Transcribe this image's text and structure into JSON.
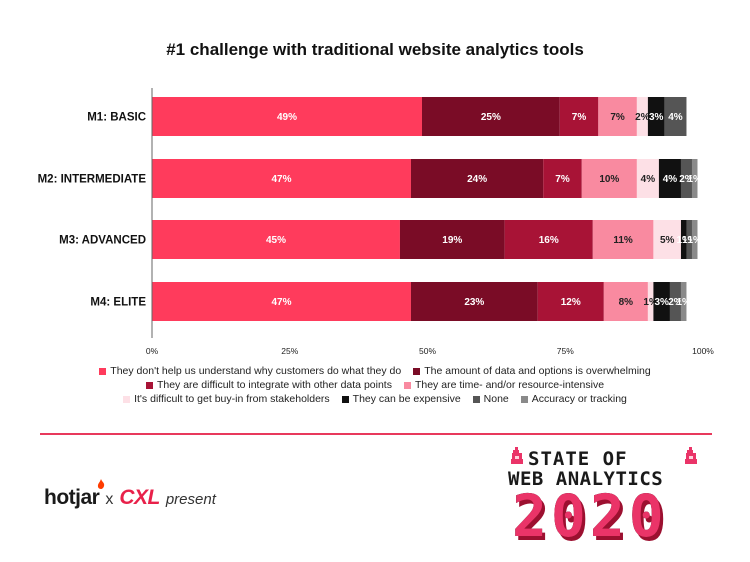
{
  "chart_data": {
    "type": "bar",
    "orientation": "horizontal",
    "stacked": true,
    "title": "#1 challenge with traditional website analytics tools",
    "categories": [
      "M1: BASIC",
      "M2: INTERMEDIATE",
      "M3: ADVANCED",
      "M4: ELITE"
    ],
    "xlim": [
      0,
      100
    ],
    "x_ticks": [
      "0%",
      "25%",
      "50%",
      "75%",
      "100%"
    ],
    "legend_position": "bottom",
    "grid": false,
    "series": [
      {
        "name": "They don't help us understand why customers do what they do",
        "color": "#ff3b5c",
        "label_color": "#ffffff",
        "values": [
          49,
          47,
          45,
          47
        ],
        "labels": [
          "49%",
          "47%",
          "45%",
          "47%"
        ]
      },
      {
        "name": "The amount of data and options is overwhelming",
        "color": "#7a0c26",
        "label_color": "#ffffff",
        "values": [
          25,
          24,
          19,
          23
        ],
        "labels": [
          "25%",
          "24%",
          "19%",
          "23%"
        ]
      },
      {
        "name": "They are difficult to integrate with other data points",
        "color": "#a81336",
        "label_color": "#ffffff",
        "values": [
          7,
          7,
          16,
          12
        ],
        "labels": [
          "7%",
          "7%",
          "16%",
          "12%"
        ]
      },
      {
        "name": "They are time- and/or resource-intensive",
        "color": "#f98aa0",
        "label_color": "#222222",
        "values": [
          7,
          10,
          11,
          8
        ],
        "labels": [
          "7%",
          "10%",
          "11%",
          "8%"
        ]
      },
      {
        "name": "It's difficult to get buy-in from stakeholders",
        "color": "#fde0e6",
        "label_color": "#222222",
        "values": [
          2,
          4,
          5,
          1
        ],
        "labels": [
          "2%",
          "4%",
          "5%",
          "1%"
        ]
      },
      {
        "name": "They can be expensive",
        "color": "#111111",
        "label_color": "#ffffff",
        "values": [
          3,
          4,
          1,
          3
        ],
        "labels": [
          "3%",
          "4%",
          "1%",
          "3%"
        ]
      },
      {
        "name": "None",
        "color": "#555555",
        "label_color": "#ffffff",
        "values": [
          4,
          2,
          1,
          2
        ],
        "labels": [
          "4%",
          "2%",
          "1%",
          "2%"
        ]
      },
      {
        "name": "Accuracy or tracking",
        "color": "#8a8a8a",
        "label_color": "#ffffff",
        "values": [
          0,
          1,
          1,
          1
        ],
        "labels": [
          "",
          "1%",
          "1%",
          "1%"
        ]
      }
    ]
  },
  "branding": {
    "hotjar": "hotjar",
    "times": "x",
    "cxl": "CXL",
    "present": "present",
    "report_line1": "STATE OF",
    "report_line2": "WEB ANALYTICS",
    "report_year": "2020",
    "accent_color": "#e8395c"
  }
}
